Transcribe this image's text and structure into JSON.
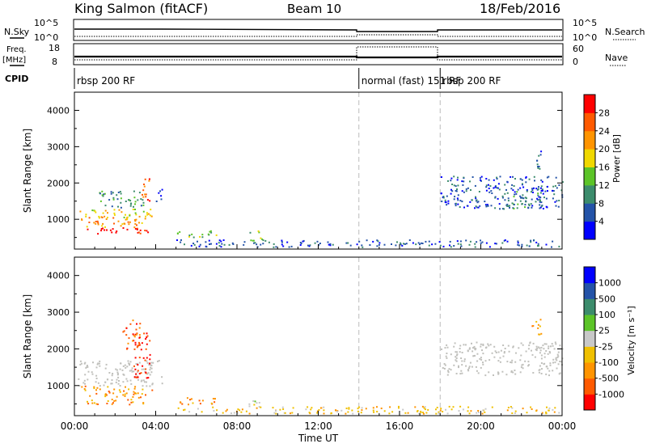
{
  "header": {
    "station": "King Salmon (fitACF)",
    "beam": "Beam 10",
    "date": "18/Feb/2016"
  },
  "top_panel": {
    "left_label": "N.Sky",
    "right_label": "N.Search",
    "left_ticks": [
      "10^5",
      "10^0"
    ],
    "right_ticks": [
      "10^5",
      "10^0"
    ]
  },
  "freq_panel": {
    "left_label_1": "Freq.",
    "left_label_2": "[MHz]",
    "right_label": "Nave",
    "left_ticks": [
      "18",
      "8"
    ],
    "right_ticks": [
      "60",
      "0"
    ]
  },
  "cpid": {
    "label": "CPID",
    "segments": [
      {
        "start_h": 0,
        "end_h": 14,
        "text": "rbsp 200 RF"
      },
      {
        "start_h": 14,
        "end_h": 18,
        "text": "normal (fast) 151 RF"
      },
      {
        "start_h": 18,
        "end_h": 24,
        "text": "rbsp 200 RF"
      }
    ]
  },
  "colors": {
    "power_scale": [
      "#0000ff",
      "#2453a8",
      "#3c8c6c",
      "#5cc428",
      "#f0d800",
      "#ff9400",
      "#ff5a00",
      "#ff0000"
    ],
    "velocity_scale": [
      "#ff0000",
      "#ff5a00",
      "#ff9400",
      "#f0c000",
      "#c8c8c8",
      "#5cc428",
      "#3c8c6c",
      "#2453a8",
      "#0000ff"
    ],
    "ground_scatter": "#c0c0bc"
  },
  "power_colorbar": {
    "label": "Power [dB]",
    "ticks": [
      "4",
      "8",
      "12",
      "16",
      "20",
      "24",
      "28"
    ]
  },
  "velocity_colorbar": {
    "label": "Velocity [m s⁻¹]",
    "ticks": [
      "-1000",
      "-500",
      "-100",
      "-25",
      "25",
      "100",
      "500",
      "1000"
    ]
  },
  "chart_data": [
    {
      "type": "heatmap",
      "name": "power",
      "ylabel": "Slant Range [km]",
      "xlabel": "",
      "xlim": [
        0,
        24
      ],
      "ylim": [
        180,
        4500
      ],
      "yticks": [
        "1000",
        "2000",
        "3000",
        "4000"
      ],
      "xticks": [
        "00:00",
        "04:00",
        "08:00",
        "12:00",
        "16:00",
        "20:00",
        "00:00"
      ],
      "mode_change_times_h": [
        14,
        18
      ],
      "regions": [
        {
          "t": [
            0.6,
            3.6
          ],
          "r": [
            600,
            800
          ],
          "level": 7
        },
        {
          "t": [
            0.3,
            3.6
          ],
          "r": [
            800,
            1100
          ],
          "level": 5
        },
        {
          "t": [
            0.1,
            3.8
          ],
          "r": [
            1050,
            1300
          ],
          "level": 4
        },
        {
          "t": [
            1.2,
            3.4
          ],
          "r": [
            1300,
            1800
          ],
          "level": 2
        },
        {
          "t": [
            3.3,
            3.7
          ],
          "r": [
            1500,
            2300
          ],
          "level": 6
        },
        {
          "t": [
            4.0,
            4.3
          ],
          "r": [
            1500,
            1900
          ],
          "level": 1
        },
        {
          "t": [
            5.0,
            7.0
          ],
          "r": [
            500,
            700
          ],
          "level": 3
        },
        {
          "t": [
            8.5,
            9.2
          ],
          "r": [
            400,
            700
          ],
          "level": 3
        },
        {
          "t": [
            5.0,
            24.0
          ],
          "r": [
            250,
            450
          ],
          "level": 1
        },
        {
          "t": [
            18.0,
            24.0
          ],
          "r": [
            1300,
            2200
          ],
          "level": 1
        },
        {
          "t": [
            21.0,
            23.0
          ],
          "r": [
            1300,
            1800
          ],
          "level": 2
        },
        {
          "t": [
            22.5,
            23.0
          ],
          "r": [
            2400,
            2900
          ],
          "level": 1
        }
      ]
    },
    {
      "type": "heatmap",
      "name": "velocity",
      "ylabel": "Slant Range [km]",
      "xlabel": "Time UT",
      "xlim": [
        0,
        24
      ],
      "ylim": [
        180,
        4500
      ],
      "yticks": [
        "1000",
        "2000",
        "3000",
        "4000"
      ],
      "xticks": [
        "00:00",
        "04:00",
        "08:00",
        "12:00",
        "16:00",
        "20:00",
        "00:00"
      ],
      "mode_change_times_h": [
        14,
        18
      ],
      "regions": [
        {
          "t": [
            0.1,
            4.3
          ],
          "r": [
            1000,
            1700
          ],
          "level": "ground"
        },
        {
          "t": [
            0.3,
            3.8
          ],
          "r": [
            800,
            1000
          ],
          "level": 2
        },
        {
          "t": [
            0.5,
            3.5
          ],
          "r": [
            500,
            800
          ],
          "level": 2
        },
        {
          "t": [
            2.9,
            3.7
          ],
          "r": [
            1200,
            2500
          ],
          "level": 0
        },
        {
          "t": [
            2.3,
            3.2
          ],
          "r": [
            2000,
            2800
          ],
          "level": 1
        },
        {
          "t": [
            5.0,
            7.0
          ],
          "r": [
            500,
            700
          ],
          "level": 2
        },
        {
          "t": [
            8.5,
            9.2
          ],
          "r": [
            400,
            700
          ],
          "level": 4
        },
        {
          "t": [
            5.0,
            24.0
          ],
          "r": [
            250,
            450
          ],
          "level": 3
        },
        {
          "t": [
            18.0,
            24.0
          ],
          "r": [
            1300,
            2200
          ],
          "level": "ground"
        },
        {
          "t": [
            22.5,
            23.0
          ],
          "r": [
            2400,
            2900
          ],
          "level": 2
        }
      ]
    }
  ]
}
